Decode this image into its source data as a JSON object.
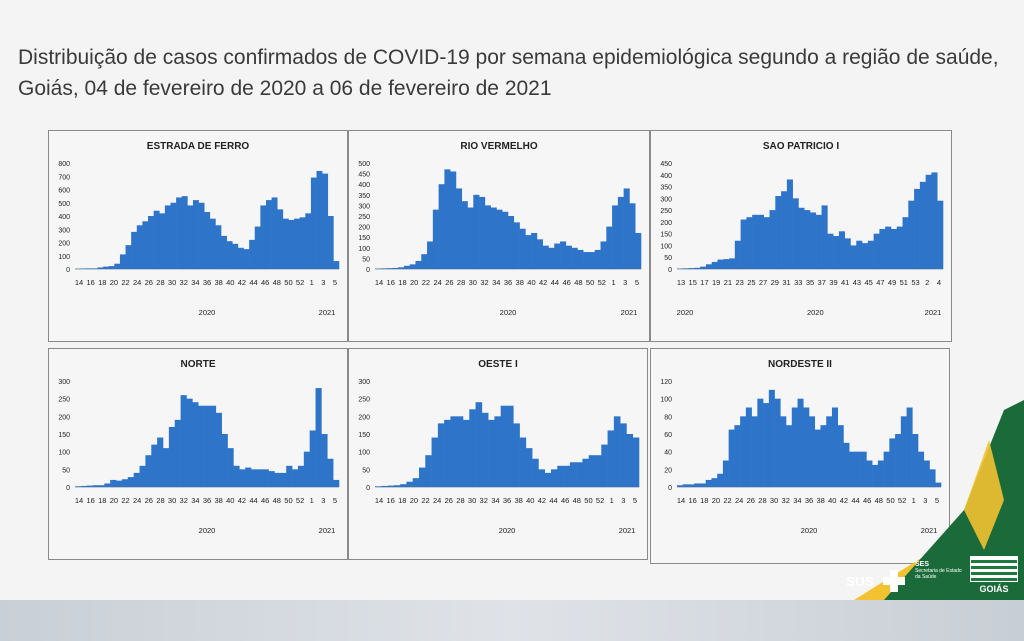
{
  "page": {
    "title": "Distribuição de casos confirmados de COVID-19 por semana epidemiológica segundo a região de saúde, Goiás, 04 de fevereiro de 2020 a 06 de fevereiro de 2021",
    "bar_color": "#2e75c9",
    "accent_green": "#1b6b3a",
    "accent_yellow": "#f2c230"
  },
  "logos": {
    "sus": "SUS",
    "ses_title": "SES",
    "ses_sub": "Secretaria de Estado da Saúde",
    "goias": "GOIÁS"
  },
  "chart_data": [
    {
      "type": "bar",
      "title": "ESTRADA DE FERRO",
      "ylim": [
        0,
        800
      ],
      "yticks": [
        "800",
        "700",
        "600",
        "500",
        "400",
        "300",
        "200",
        "100",
        "0"
      ],
      "xtick_labels": [
        "14",
        "16",
        "18",
        "20",
        "22",
        "24",
        "26",
        "28",
        "30",
        "32",
        "34",
        "36",
        "38",
        "40",
        "42",
        "44",
        "46",
        "48",
        "50",
        "52",
        "1",
        "3",
        "5"
      ],
      "year_labels": [
        "2020",
        "2021"
      ],
      "values": [
        2,
        4,
        5,
        5,
        12,
        18,
        22,
        40,
        110,
        180,
        280,
        330,
        360,
        400,
        440,
        420,
        480,
        500,
        540,
        550,
        480,
        520,
        500,
        430,
        380,
        330,
        250,
        210,
        190,
        160,
        150,
        220,
        320,
        480,
        520,
        540,
        450,
        380,
        370,
        380,
        390,
        420,
        690,
        740,
        720,
        400,
        60
      ]
    },
    {
      "type": "bar",
      "title": "RIO VERMELHO",
      "ylim": [
        0,
        500
      ],
      "yticks": [
        "500",
        "450",
        "400",
        "350",
        "300",
        "250",
        "200",
        "150",
        "100",
        "50",
        "0"
      ],
      "xtick_labels": [
        "14",
        "16",
        "18",
        "20",
        "22",
        "24",
        "26",
        "28",
        "30",
        "32",
        "34",
        "36",
        "38",
        "40",
        "42",
        "44",
        "46",
        "48",
        "50",
        "52",
        "1",
        "3",
        "5"
      ],
      "year_labels": [
        "2020",
        "2021"
      ],
      "values": [
        2,
        3,
        4,
        5,
        8,
        15,
        22,
        38,
        70,
        130,
        280,
        400,
        470,
        460,
        380,
        320,
        290,
        350,
        340,
        300,
        290,
        280,
        270,
        250,
        220,
        190,
        160,
        170,
        140,
        110,
        100,
        120,
        130,
        110,
        100,
        90,
        80,
        80,
        90,
        130,
        200,
        300,
        340,
        380,
        310,
        170
      ]
    },
    {
      "type": "bar",
      "title": "SAO PATRICIO I",
      "ylim": [
        0,
        450
      ],
      "yticks": [
        "450",
        "400",
        "350",
        "300",
        "250",
        "200",
        "150",
        "100",
        "50",
        "0"
      ],
      "xtick_labels": [
        "13",
        "15",
        "17",
        "19",
        "21",
        "23",
        "25",
        "27",
        "29",
        "31",
        "33",
        "35",
        "37",
        "39",
        "41",
        "43",
        "45",
        "47",
        "49",
        "51",
        "53",
        "2",
        "4"
      ],
      "year_labels": [
        "2020",
        "2020",
        "2021"
      ],
      "values": [
        2,
        3,
        4,
        5,
        10,
        20,
        30,
        40,
        42,
        45,
        120,
        210,
        220,
        230,
        230,
        220,
        250,
        310,
        330,
        380,
        300,
        260,
        250,
        240,
        230,
        270,
        150,
        140,
        160,
        130,
        100,
        120,
        110,
        120,
        150,
        170,
        180,
        170,
        180,
        220,
        290,
        340,
        370,
        400,
        410,
        290
      ]
    },
    {
      "type": "bar",
      "title": "NORTE",
      "ylim": [
        0,
        300
      ],
      "yticks": [
        "300",
        "250",
        "200",
        "150",
        "100",
        "50",
        "0"
      ],
      "xtick_labels": [
        "14",
        "16",
        "18",
        "20",
        "22",
        "24",
        "26",
        "28",
        "30",
        "32",
        "34",
        "36",
        "38",
        "40",
        "42",
        "44",
        "46",
        "48",
        "50",
        "52",
        "1",
        "3",
        "5"
      ],
      "year_labels": [
        "2020",
        "2021"
      ],
      "values": [
        2,
        3,
        4,
        5,
        5,
        10,
        20,
        18,
        22,
        28,
        40,
        60,
        90,
        120,
        140,
        110,
        170,
        190,
        260,
        250,
        240,
        230,
        230,
        230,
        210,
        150,
        110,
        60,
        50,
        55,
        50,
        50,
        50,
        45,
        40,
        40,
        60,
        50,
        60,
        100,
        160,
        280,
        150,
        80,
        20
      ]
    },
    {
      "type": "bar",
      "title": "OESTE I",
      "ylim": [
        0,
        300
      ],
      "yticks": [
        "300",
        "250",
        "200",
        "150",
        "100",
        "50",
        "0"
      ],
      "xtick_labels": [
        "14",
        "16",
        "18",
        "20",
        "22",
        "24",
        "26",
        "28",
        "30",
        "32",
        "34",
        "36",
        "38",
        "40",
        "42",
        "44",
        "46",
        "48",
        "50",
        "52",
        "1",
        "3",
        "5"
      ],
      "year_labels": [
        "2020",
        "2021"
      ],
      "values": [
        2,
        3,
        4,
        5,
        8,
        15,
        25,
        55,
        90,
        140,
        180,
        190,
        200,
        200,
        190,
        220,
        240,
        210,
        190,
        200,
        230,
        230,
        180,
        140,
        110,
        80,
        50,
        40,
        50,
        60,
        60,
        70,
        70,
        80,
        90,
        90,
        120,
        160,
        200,
        180,
        150,
        140
      ]
    },
    {
      "type": "bar",
      "title": "NORDESTE II",
      "ylim": [
        0,
        120
      ],
      "yticks": [
        "120",
        "100",
        "80",
        "60",
        "40",
        "20",
        "0"
      ],
      "xtick_labels": [
        "14",
        "16",
        "18",
        "20",
        "22",
        "24",
        "26",
        "28",
        "30",
        "32",
        "34",
        "36",
        "38",
        "40",
        "42",
        "44",
        "46",
        "48",
        "50",
        "52",
        "1",
        "3",
        "5"
      ],
      "year_labels": [
        "2020",
        "2021"
      ],
      "values": [
        2,
        3,
        3,
        4,
        4,
        8,
        10,
        15,
        30,
        65,
        70,
        80,
        90,
        80,
        100,
        95,
        110,
        100,
        80,
        70,
        90,
        100,
        90,
        80,
        65,
        70,
        80,
        90,
        70,
        50,
        40,
        40,
        40,
        30,
        25,
        30,
        40,
        55,
        60,
        80,
        90,
        60,
        40,
        30,
        20,
        5
      ]
    }
  ]
}
